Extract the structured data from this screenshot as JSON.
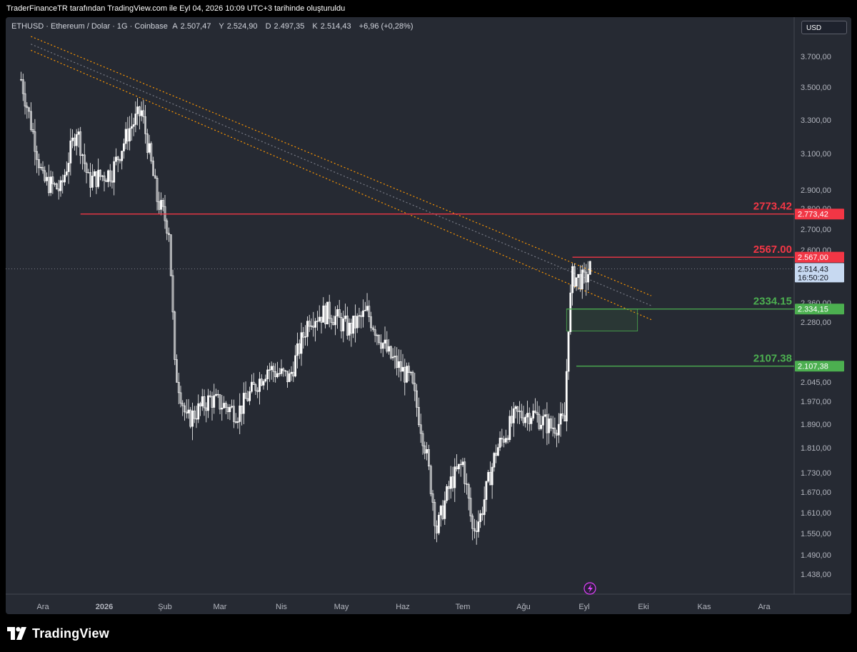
{
  "header": {
    "title": "TraderFinanceTR tarafından TradingView.com ile Eyl 04, 2026 10:09 UTC+3 tarihinde oluşturuldu"
  },
  "legend": {
    "symbol": "ETHUSD · Ethereum / Dolar · 1G · Coinbase",
    "open_label": "A",
    "open": "2.507,47",
    "high_label": "Y",
    "high": "2.524,90",
    "low_label": "D",
    "low": "2.497,35",
    "close_label": "K",
    "close": "2.514,43",
    "change": "+6,96 (+0,28%)"
  },
  "currency_button": "USD",
  "brand": {
    "name": "TradingView"
  },
  "colors": {
    "background": "#262a33",
    "candle": "#ffffff",
    "resistance": "#f23645",
    "support": "#4caf50",
    "channel": "#ff9800",
    "channel_mid": "#787b86"
  },
  "chart_data": {
    "type": "candlestick",
    "symbol": "ETHUSD",
    "timeframe": "1G",
    "x_ticks": [
      "Ara",
      "2026",
      "Şub",
      "Mar",
      "Nis",
      "May",
      "Haz",
      "Tem",
      "Ağu",
      "Eyl",
      "Eki",
      "Kas",
      "Ara"
    ],
    "y_ticks": [
      "3.700,00",
      "3.500,00",
      "3.300,00",
      "3.100,00",
      "2.900,00",
      "2.800,00",
      "2.700,00",
      "2.600,00",
      "2.360,00",
      "2.280,00",
      "2.045,00",
      "1.970,00",
      "1.890,00",
      "1.810,00",
      "1.730,00",
      "1.670,00",
      "1.610,00",
      "1.550,00",
      "1.490,00",
      "1.438,00"
    ],
    "y_range": [
      1400,
      3760
    ],
    "x_range_months": [
      "2025-12",
      "2026-12"
    ],
    "price_path": [
      {
        "date": "2025-11-20",
        "price": 3550
      },
      {
        "date": "2025-12-01",
        "price": 2950
      },
      {
        "date": "2025-12-10",
        "price": 2900
      },
      {
        "date": "2025-12-18",
        "price": 3250
      },
      {
        "date": "2025-12-24",
        "price": 2950
      },
      {
        "date": "2026-01-05",
        "price": 3000
      },
      {
        "date": "2026-01-14",
        "price": 3250
      },
      {
        "date": "2026-01-20",
        "price": 3350
      },
      {
        "date": "2026-01-28",
        "price": 2850
      },
      {
        "date": "2026-02-03",
        "price": 2700
      },
      {
        "date": "2026-02-06",
        "price": 2100
      },
      {
        "date": "2026-02-12",
        "price": 1900
      },
      {
        "date": "2026-02-24",
        "price": 1980
      },
      {
        "date": "2026-03-10",
        "price": 1930
      },
      {
        "date": "2026-03-25",
        "price": 2100
      },
      {
        "date": "2026-04-05",
        "price": 2060
      },
      {
        "date": "2026-04-15",
        "price": 2300
      },
      {
        "date": "2026-04-25",
        "price": 2320
      },
      {
        "date": "2026-05-05",
        "price": 2250
      },
      {
        "date": "2026-05-14",
        "price": 2320
      },
      {
        "date": "2026-05-25",
        "price": 2150
      },
      {
        "date": "2026-06-05",
        "price": 2050
      },
      {
        "date": "2026-06-12",
        "price": 1820
      },
      {
        "date": "2026-06-18",
        "price": 1560
      },
      {
        "date": "2026-06-25",
        "price": 1700
      },
      {
        "date": "2026-07-01",
        "price": 1760
      },
      {
        "date": "2026-07-06",
        "price": 1560
      },
      {
        "date": "2026-07-10",
        "price": 1600
      },
      {
        "date": "2026-07-18",
        "price": 1800
      },
      {
        "date": "2026-07-28",
        "price": 1920
      },
      {
        "date": "2026-08-05",
        "price": 1930
      },
      {
        "date": "2026-08-15",
        "price": 1880
      },
      {
        "date": "2026-08-22",
        "price": 1900
      },
      {
        "date": "2026-08-24",
        "price": 2280
      },
      {
        "date": "2026-08-26",
        "price": 2480
      },
      {
        "date": "2026-09-01",
        "price": 2460
      },
      {
        "date": "2026-09-04",
        "price": 2514
      }
    ],
    "horizontal_levels": [
      {
        "price": 2773.42,
        "label": "2773.42",
        "axis_label": "2.773,42",
        "color": "#f23645",
        "start_date": "2025-12-20"
      },
      {
        "price": 2567.0,
        "label": "2567.00",
        "axis_label": "2.567,00",
        "color": "#f23645",
        "start_date": "2026-08-26"
      },
      {
        "price": 2334.15,
        "label": "2334.15",
        "axis_label": "2.334,15",
        "color": "#4caf50",
        "start_date": "2026-08-23"
      },
      {
        "price": 2107.38,
        "label": "2107.38",
        "axis_label": "2.107,38",
        "color": "#4caf50",
        "start_date": "2026-08-28"
      }
    ],
    "last_price": {
      "value": 2514.43,
      "axis_label": "2.514,43",
      "countdown": "16:50:20"
    },
    "descending_channel": {
      "upper": [
        {
          "date": "2025-11-25",
          "price": 3830
        },
        {
          "date": "2026-10-05",
          "price": 2392
        }
      ],
      "middle": [
        {
          "date": "2025-11-25",
          "price": 3780
        },
        {
          "date": "2026-10-05",
          "price": 2348
        }
      ],
      "lower": [
        {
          "date": "2025-11-25",
          "price": 3740
        },
        {
          "date": "2026-10-05",
          "price": 2290
        }
      ]
    },
    "zone_box": {
      "start_date": "2026-08-23",
      "end_date": "2026-09-28",
      "top": 2334.15,
      "bottom": 2245
    }
  }
}
